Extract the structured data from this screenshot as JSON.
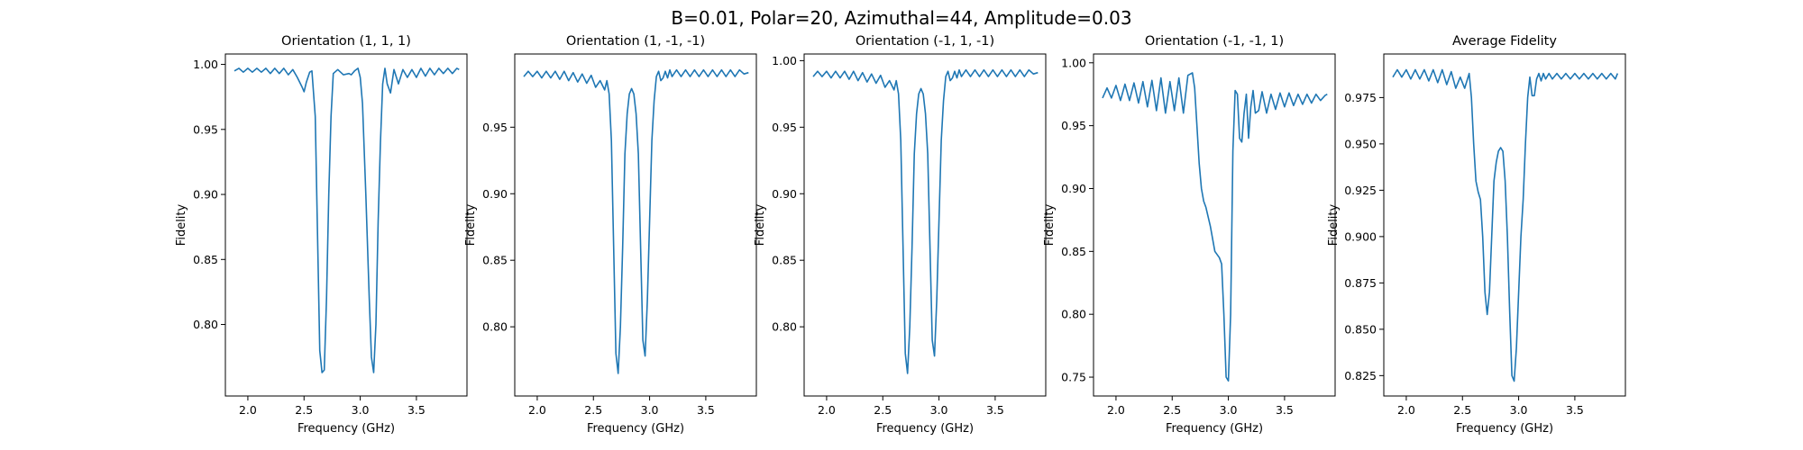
{
  "figure": {
    "suptitle": "B=0.01, Polar=20, Azimuthal=44, Amplitude=0.03",
    "line_color": "#1f77b4"
  },
  "chart_data": [
    {
      "type": "line",
      "title": "Orientation (1, 1, 1)",
      "xlabel": "Frequency (GHz)",
      "ylabel": "Fidelity",
      "xlim": [
        1.8,
        3.95
      ],
      "ylim": [
        0.745,
        1.008
      ],
      "xticks": [
        2.0,
        2.5,
        3.0,
        3.5
      ],
      "xtick_labels": [
        "2.0",
        "2.5",
        "3.0",
        "3.5"
      ],
      "yticks": [
        0.8,
        0.85,
        0.9,
        0.95,
        1.0
      ],
      "ytick_labels": [
        "0.80",
        "0.85",
        "0.90",
        "0.95",
        "1.00"
      ],
      "series": [
        {
          "x": [
            1.88,
            1.92,
            1.96,
            2.0,
            2.04,
            2.08,
            2.12,
            2.16,
            2.2,
            2.24,
            2.28,
            2.32,
            2.36,
            2.4,
            2.44,
            2.48,
            2.5,
            2.52,
            2.55,
            2.57,
            2.6,
            2.62,
            2.64,
            2.66,
            2.68,
            2.7,
            2.72,
            2.74,
            2.76,
            2.8,
            2.85,
            2.9,
            2.92,
            2.95,
            2.98,
            3.0,
            3.02,
            3.05,
            3.08,
            3.1,
            3.12,
            3.14,
            3.16,
            3.18,
            3.2,
            3.22,
            3.24,
            3.27,
            3.3,
            3.34,
            3.38,
            3.42,
            3.46,
            3.5,
            3.54,
            3.58,
            3.62,
            3.66,
            3.7,
            3.74,
            3.78,
            3.82,
            3.86,
            3.88
          ],
          "y": [
            0.995,
            0.997,
            0.994,
            0.997,
            0.994,
            0.997,
            0.994,
            0.997,
            0.993,
            0.997,
            0.993,
            0.997,
            0.992,
            0.996,
            0.99,
            0.983,
            0.979,
            0.986,
            0.994,
            0.995,
            0.96,
            0.87,
            0.78,
            0.763,
            0.765,
            0.82,
            0.9,
            0.96,
            0.993,
            0.996,
            0.992,
            0.993,
            0.992,
            0.995,
            0.997,
            0.99,
            0.97,
            0.9,
            0.82,
            0.775,
            0.763,
            0.8,
            0.88,
            0.94,
            0.985,
            0.997,
            0.985,
            0.978,
            0.996,
            0.985,
            0.996,
            0.99,
            0.996,
            0.99,
            0.997,
            0.991,
            0.997,
            0.992,
            0.997,
            0.993,
            0.997,
            0.993,
            0.997,
            0.996
          ]
        }
      ]
    },
    {
      "type": "line",
      "title": "Orientation (1, -1, -1)",
      "xlabel": "Frequency (GHz)",
      "ylabel": "Fidelity",
      "xlim": [
        1.8,
        3.95
      ],
      "ylim": [
        0.748,
        1.005
      ],
      "xticks": [
        2.0,
        2.5,
        3.0,
        3.5
      ],
      "xtick_labels": [
        "2.0",
        "2.5",
        "3.0",
        "3.5"
      ],
      "yticks": [
        0.8,
        0.85,
        0.9,
        0.95
      ],
      "ytick_labels": [
        "0.80",
        "0.85",
        "0.90",
        "0.95"
      ],
      "series": [
        {
          "x": [
            1.88,
            1.92,
            1.96,
            2.0,
            2.04,
            2.08,
            2.12,
            2.16,
            2.2,
            2.24,
            2.28,
            2.32,
            2.36,
            2.4,
            2.44,
            2.48,
            2.52,
            2.56,
            2.6,
            2.62,
            2.64,
            2.66,
            2.68,
            2.7,
            2.72,
            2.74,
            2.76,
            2.78,
            2.8,
            2.82,
            2.84,
            2.86,
            2.88,
            2.9,
            2.92,
            2.94,
            2.96,
            2.98,
            3.0,
            3.02,
            3.04,
            3.06,
            3.08,
            3.1,
            3.12,
            3.14,
            3.16,
            3.18,
            3.2,
            3.24,
            3.28,
            3.32,
            3.36,
            3.4,
            3.44,
            3.48,
            3.52,
            3.56,
            3.6,
            3.64,
            3.68,
            3.72,
            3.76,
            3.8,
            3.84,
            3.88
          ],
          "y": [
            0.988,
            0.992,
            0.988,
            0.992,
            0.987,
            0.992,
            0.987,
            0.992,
            0.986,
            0.992,
            0.985,
            0.991,
            0.984,
            0.99,
            0.983,
            0.989,
            0.98,
            0.985,
            0.978,
            0.985,
            0.975,
            0.94,
            0.86,
            0.78,
            0.765,
            0.8,
            0.86,
            0.93,
            0.96,
            0.975,
            0.979,
            0.975,
            0.96,
            0.93,
            0.86,
            0.79,
            0.778,
            0.82,
            0.88,
            0.94,
            0.97,
            0.988,
            0.992,
            0.985,
            0.987,
            0.992,
            0.987,
            0.993,
            0.988,
            0.993,
            0.988,
            0.993,
            0.988,
            0.993,
            0.988,
            0.993,
            0.988,
            0.993,
            0.988,
            0.993,
            0.988,
            0.993,
            0.988,
            0.993,
            0.99,
            0.991
          ]
        }
      ]
    },
    {
      "type": "line",
      "title": "Orientation (-1, 1, -1)",
      "xlabel": "Frequency (GHz)",
      "ylabel": "Fidelity",
      "xlim": [
        1.8,
        3.95
      ],
      "ylim": [
        0.748,
        1.005
      ],
      "xticks": [
        2.0,
        2.5,
        3.0,
        3.5
      ],
      "xtick_labels": [
        "2.0",
        "2.5",
        "3.0",
        "3.5"
      ],
      "yticks": [
        0.8,
        0.85,
        0.9,
        0.95,
        1.0
      ],
      "ytick_labels": [
        "0.80",
        "0.85",
        "0.90",
        "0.95",
        "1.00"
      ],
      "series": [
        {
          "x": [
            1.88,
            1.92,
            1.96,
            2.0,
            2.04,
            2.08,
            2.12,
            2.16,
            2.2,
            2.24,
            2.28,
            2.32,
            2.36,
            2.4,
            2.44,
            2.48,
            2.52,
            2.56,
            2.6,
            2.62,
            2.64,
            2.66,
            2.68,
            2.7,
            2.72,
            2.74,
            2.76,
            2.78,
            2.8,
            2.82,
            2.84,
            2.86,
            2.88,
            2.9,
            2.92,
            2.94,
            2.96,
            2.98,
            3.0,
            3.02,
            3.04,
            3.06,
            3.08,
            3.1,
            3.12,
            3.14,
            3.16,
            3.18,
            3.2,
            3.24,
            3.28,
            3.32,
            3.36,
            3.4,
            3.44,
            3.48,
            3.52,
            3.56,
            3.6,
            3.64,
            3.68,
            3.72,
            3.76,
            3.8,
            3.84,
            3.88
          ],
          "y": [
            0.988,
            0.992,
            0.988,
            0.992,
            0.987,
            0.992,
            0.987,
            0.992,
            0.986,
            0.992,
            0.985,
            0.991,
            0.984,
            0.99,
            0.983,
            0.989,
            0.98,
            0.985,
            0.978,
            0.985,
            0.975,
            0.94,
            0.86,
            0.78,
            0.765,
            0.8,
            0.86,
            0.93,
            0.96,
            0.975,
            0.979,
            0.975,
            0.96,
            0.93,
            0.86,
            0.79,
            0.778,
            0.82,
            0.88,
            0.94,
            0.97,
            0.988,
            0.992,
            0.985,
            0.987,
            0.992,
            0.987,
            0.993,
            0.988,
            0.993,
            0.988,
            0.993,
            0.988,
            0.993,
            0.988,
            0.993,
            0.988,
            0.993,
            0.988,
            0.993,
            0.988,
            0.993,
            0.988,
            0.993,
            0.99,
            0.991
          ]
        }
      ]
    },
    {
      "type": "line",
      "title": "Orientation (-1, -1, 1)",
      "xlabel": "Frequency (GHz)",
      "ylabel": "Fidelity",
      "xlim": [
        1.8,
        3.95
      ],
      "ylim": [
        0.735,
        1.007
      ],
      "xticks": [
        2.0,
        2.5,
        3.0,
        3.5
      ],
      "xtick_labels": [
        "2.0",
        "2.5",
        "3.0",
        "3.5"
      ],
      "yticks": [
        0.75,
        0.8,
        0.85,
        0.9,
        0.95,
        1.0
      ],
      "ytick_labels": [
        "0.75",
        "0.80",
        "0.85",
        "0.90",
        "0.95",
        "1.00"
      ],
      "series": [
        {
          "x": [
            1.88,
            1.92,
            1.96,
            2.0,
            2.04,
            2.08,
            2.12,
            2.16,
            2.2,
            2.24,
            2.28,
            2.32,
            2.36,
            2.4,
            2.44,
            2.48,
            2.52,
            2.56,
            2.6,
            2.64,
            2.68,
            2.7,
            2.72,
            2.74,
            2.76,
            2.78,
            2.8,
            2.84,
            2.88,
            2.92,
            2.94,
            2.96,
            2.98,
            3.0,
            3.02,
            3.04,
            3.06,
            3.08,
            3.1,
            3.12,
            3.14,
            3.16,
            3.18,
            3.2,
            3.22,
            3.24,
            3.27,
            3.3,
            3.34,
            3.38,
            3.42,
            3.46,
            3.5,
            3.54,
            3.58,
            3.62,
            3.66,
            3.7,
            3.74,
            3.78,
            3.82,
            3.86,
            3.88
          ],
          "y": [
            0.972,
            0.98,
            0.972,
            0.982,
            0.97,
            0.983,
            0.97,
            0.984,
            0.968,
            0.985,
            0.965,
            0.986,
            0.962,
            0.988,
            0.96,
            0.985,
            0.962,
            0.988,
            0.96,
            0.99,
            0.992,
            0.98,
            0.95,
            0.92,
            0.9,
            0.89,
            0.885,
            0.87,
            0.85,
            0.845,
            0.84,
            0.8,
            0.75,
            0.747,
            0.8,
            0.93,
            0.978,
            0.975,
            0.94,
            0.937,
            0.96,
            0.975,
            0.94,
            0.965,
            0.978,
            0.96,
            0.962,
            0.977,
            0.96,
            0.975,
            0.963,
            0.976,
            0.965,
            0.976,
            0.966,
            0.975,
            0.967,
            0.975,
            0.968,
            0.975,
            0.97,
            0.974,
            0.975
          ]
        }
      ]
    },
    {
      "type": "line",
      "title": "Average Fidelity",
      "xlabel": "Frequency (GHz)",
      "ylabel": "Fidelity",
      "xlim": [
        1.8,
        3.95
      ],
      "ylim": [
        0.814,
        0.9985
      ],
      "xticks": [
        2.0,
        2.5,
        3.0,
        3.5
      ],
      "xtick_labels": [
        "2.0",
        "2.5",
        "3.0",
        "3.5"
      ],
      "yticks": [
        0.825,
        0.85,
        0.875,
        0.9,
        0.925,
        0.95,
        0.975
      ],
      "ytick_labels": [
        "0.825",
        "0.850",
        "0.875",
        "0.900",
        "0.925",
        "0.950",
        "0.975"
      ],
      "series": [
        {
          "x": [
            1.88,
            1.92,
            1.96,
            2.0,
            2.04,
            2.08,
            2.12,
            2.16,
            2.2,
            2.24,
            2.28,
            2.32,
            2.36,
            2.4,
            2.44,
            2.48,
            2.52,
            2.56,
            2.58,
            2.6,
            2.62,
            2.64,
            2.66,
            2.68,
            2.7,
            2.72,
            2.74,
            2.76,
            2.78,
            2.8,
            2.82,
            2.84,
            2.86,
            2.88,
            2.9,
            2.92,
            2.94,
            2.96,
            2.98,
            3.0,
            3.02,
            3.04,
            3.06,
            3.08,
            3.1,
            3.12,
            3.14,
            3.16,
            3.18,
            3.2,
            3.22,
            3.24,
            3.27,
            3.3,
            3.34,
            3.38,
            3.42,
            3.46,
            3.5,
            3.54,
            3.58,
            3.62,
            3.66,
            3.7,
            3.74,
            3.78,
            3.82,
            3.86,
            3.88
          ],
          "y": [
            0.986,
            0.99,
            0.986,
            0.99,
            0.985,
            0.99,
            0.985,
            0.99,
            0.984,
            0.99,
            0.983,
            0.99,
            0.982,
            0.989,
            0.98,
            0.986,
            0.98,
            0.988,
            0.975,
            0.95,
            0.93,
            0.924,
            0.92,
            0.9,
            0.87,
            0.858,
            0.87,
            0.9,
            0.93,
            0.94,
            0.946,
            0.948,
            0.946,
            0.93,
            0.9,
            0.86,
            0.825,
            0.822,
            0.84,
            0.87,
            0.9,
            0.92,
            0.95,
            0.975,
            0.986,
            0.976,
            0.976,
            0.985,
            0.988,
            0.984,
            0.988,
            0.985,
            0.988,
            0.985,
            0.988,
            0.985,
            0.988,
            0.985,
            0.988,
            0.985,
            0.988,
            0.985,
            0.988,
            0.985,
            0.988,
            0.985,
            0.988,
            0.985,
            0.988
          ]
        }
      ]
    }
  ]
}
